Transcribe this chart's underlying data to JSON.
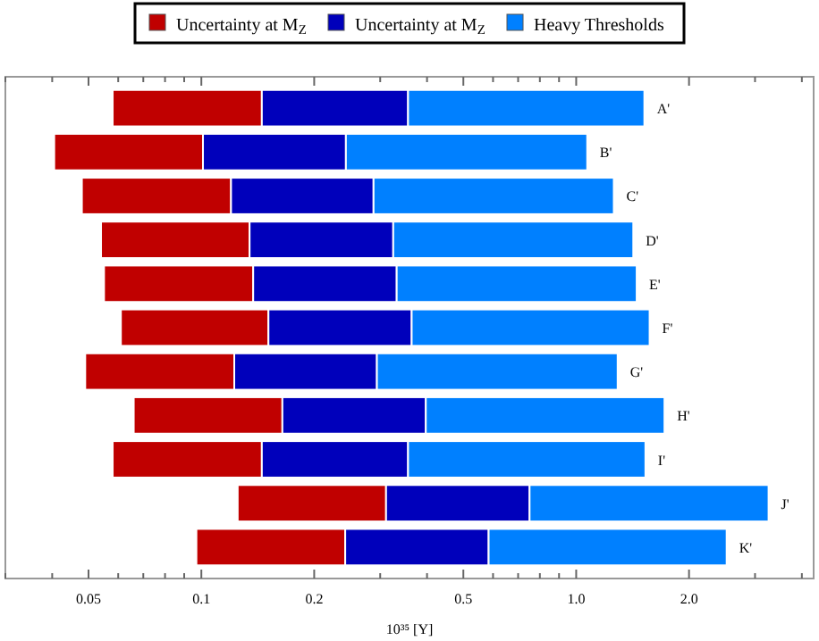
{
  "chart_data": {
    "type": "bar",
    "orientation": "horizontal",
    "log": "x",
    "xlabel": "10³⁵ [Y]",
    "categories": [
      "A'",
      "B'",
      "C'",
      "D'",
      "E'",
      "F'",
      "G'",
      "H'",
      "I'",
      "J'",
      "K'"
    ],
    "series": [
      {
        "name": "Uncertainty at M$_{Z}$",
        "color": "#c00000",
        "base": [
          0.058,
          0.0405,
          0.048,
          0.054,
          0.055,
          0.061,
          0.049,
          0.066,
          0.058,
          0.125,
          0.097
        ],
        "values": [
          0.087,
          0.0605,
          0.072,
          0.0805,
          0.0825,
          0.09,
          0.0734,
          0.0985,
          0.087,
          0.186,
          0.145
        ]
      },
      {
        "name": "Uncertainty at M$_{Z}$",
        "color": "#0000bb",
        "base": [
          0.145,
          0.101,
          0.12,
          0.1345,
          0.1375,
          0.151,
          0.1224,
          0.1645,
          0.145,
          0.311,
          0.242
        ],
        "values": [
          0.211,
          0.142,
          0.168,
          0.1905,
          0.1945,
          0.213,
          0.1716,
          0.2325,
          0.211,
          0.44,
          0.342
        ]
      },
      {
        "name": "Heavy Thresholds",
        "color": "#0080ff",
        "base": [
          0.356,
          0.243,
          0.288,
          0.325,
          0.332,
          0.364,
          0.294,
          0.397,
          0.356,
          0.751,
          0.584
        ],
        "values": [
          1.164,
          0.827,
          0.972,
          1.095,
          1.118,
          1.206,
          0.996,
          1.323,
          1.174,
          2.509,
          1.936
        ]
      }
    ],
    "xlim": [
      0.03,
      4.3
    ],
    "xticks": [
      {
        "value": 0.03,
        "label": null
      },
      {
        "value": 0.04,
        "label": null
      },
      0.05,
      {
        "value": 0.06,
        "label": null
      },
      {
        "value": 0.07,
        "label": null
      },
      {
        "value": 0.08,
        "label": null
      },
      {
        "value": 0.09,
        "label": null
      },
      0.1,
      0.2,
      {
        "value": 0.3,
        "label": null
      },
      {
        "value": 0.4,
        "label": null
      },
      0.5,
      {
        "value": 0.6,
        "label": null
      },
      {
        "value": 0.7,
        "label": null
      },
      {
        "value": 0.8,
        "label": null
      },
      {
        "value": 0.9,
        "label": null
      },
      {
        "value": 1,
        "label": "1.0"
      },
      {
        "value": 2,
        "label": "2.0"
      },
      {
        "value": 3,
        "label": null
      },
      {
        "value": 4,
        "label": null
      }
    ],
    "grid": false,
    "legend": "top"
  }
}
